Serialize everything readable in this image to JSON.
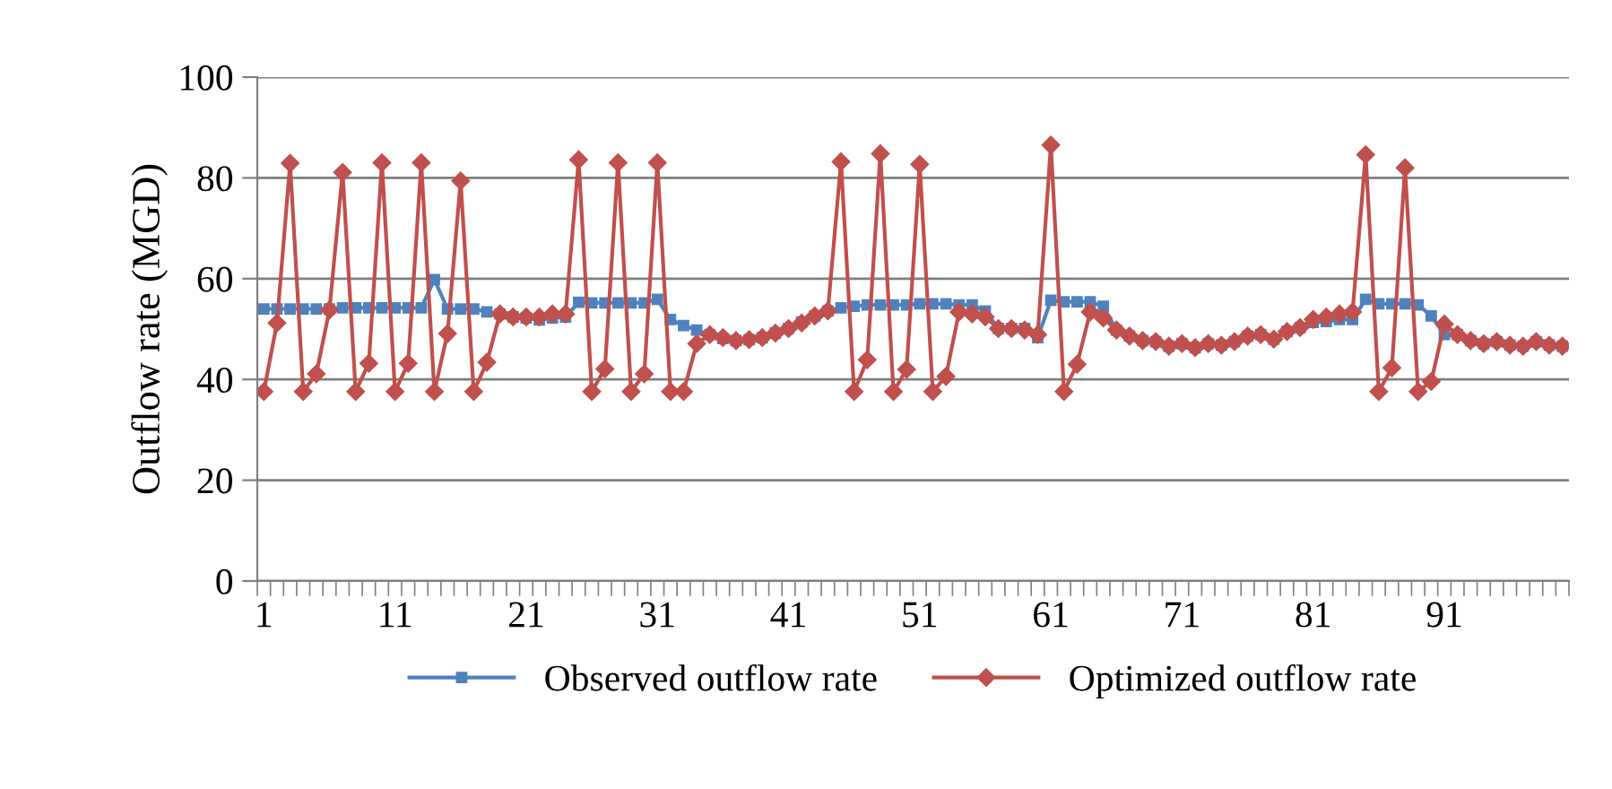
{
  "chart_data": {
    "type": "line",
    "ylabel": "Outflow rate (MGD)",
    "categories": [
      "1",
      null,
      null,
      null,
      null,
      null,
      null,
      null,
      null,
      null,
      "11",
      null,
      null,
      null,
      null,
      null,
      null,
      null,
      null,
      null,
      "21",
      null,
      null,
      null,
      null,
      null,
      null,
      null,
      null,
      null,
      "31",
      null,
      null,
      null,
      null,
      null,
      null,
      null,
      null,
      null,
      "41",
      null,
      null,
      null,
      null,
      null,
      null,
      null,
      null,
      null,
      "51",
      null,
      null,
      null,
      null,
      null,
      null,
      null,
      null,
      null,
      "61",
      null,
      null,
      null,
      null,
      null,
      null,
      null,
      null,
      null,
      "71",
      null,
      null,
      null,
      null,
      null,
      null,
      null,
      null,
      null,
      "81",
      null,
      null,
      null,
      null,
      null,
      null,
      null,
      null,
      null,
      "91",
      null,
      null,
      null,
      null,
      null,
      null,
      null,
      null,
      null
    ],
    "series": [
      {
        "name": "Observed outflow rate",
        "color": "#4f81bd",
        "marker": "square",
        "values": [
          54.0,
          54.0,
          54.0,
          54.0,
          54.0,
          54.0,
          54.2,
          54.2,
          54.2,
          54.2,
          54.2,
          54.2,
          54.2,
          59.8,
          54.0,
          54.0,
          54.0,
          53.4,
          53.0,
          52.4,
          52.2,
          51.8,
          52.2,
          52.4,
          55.3,
          55.2,
          55.2,
          55.2,
          55.2,
          55.2,
          55.9,
          51.9,
          50.7,
          49.8,
          48.9,
          48.1,
          47.7,
          47.9,
          48.3,
          49.2,
          50.1,
          51.4,
          52.6,
          53.6,
          54.2,
          54.5,
          54.8,
          54.8,
          54.8,
          54.8,
          55.0,
          55.0,
          55.0,
          54.8,
          54.8,
          53.6,
          50.1,
          50.1,
          50.1,
          48.3,
          55.7,
          55.4,
          55.4,
          55.4,
          54.5,
          49.8,
          48.6,
          47.7,
          47.5,
          46.6,
          47.1,
          46.3,
          47.1,
          46.8,
          47.5,
          48.6,
          48.9,
          48.0,
          49.5,
          50.3,
          51.3,
          51.5,
          51.9,
          51.9,
          55.9,
          55.0,
          55.0,
          55.0,
          54.8,
          52.6,
          48.9,
          48.9,
          47.7,
          47.1,
          47.5,
          46.8,
          46.6,
          47.5,
          46.8,
          46.6
        ]
      },
      {
        "name": "Optimized outflow rate",
        "color": "#c0504d",
        "marker": "diamond",
        "values": [
          37.6,
          51.2,
          82.9,
          37.6,
          41.1,
          53.8,
          81.1,
          37.6,
          43.2,
          83.0,
          37.6,
          43.2,
          83.0,
          37.6,
          49.1,
          79.4,
          37.6,
          43.4,
          53.0,
          52.4,
          52.4,
          52.4,
          53.0,
          53.0,
          83.6,
          37.6,
          42.1,
          83.0,
          37.6,
          41.1,
          83.0,
          37.6,
          37.6,
          47.1,
          48.9,
          48.3,
          47.7,
          47.9,
          48.3,
          49.2,
          50.1,
          51.2,
          52.6,
          53.6,
          83.2,
          37.6,
          43.9,
          84.8,
          37.6,
          42.0,
          82.7,
          37.6,
          40.6,
          53.4,
          53.0,
          52.4,
          50.1,
          50.1,
          49.8,
          48.9,
          86.5,
          37.6,
          43.0,
          53.4,
          52.2,
          49.8,
          48.6,
          47.7,
          47.5,
          46.6,
          47.1,
          46.3,
          47.1,
          46.8,
          47.5,
          48.6,
          48.9,
          48.0,
          49.5,
          50.3,
          51.9,
          52.4,
          53.0,
          53.4,
          84.6,
          37.6,
          42.3,
          82.0,
          37.6,
          39.6,
          51.0,
          48.9,
          47.7,
          47.1,
          47.5,
          46.8,
          46.6,
          47.5,
          46.8,
          46.6
        ]
      }
    ],
    "ylim": [
      0,
      100
    ],
    "yticks": [
      0,
      20,
      40,
      60,
      80,
      100
    ],
    "grid": "y",
    "legend": "bottom",
    "line_style": "solid"
  }
}
